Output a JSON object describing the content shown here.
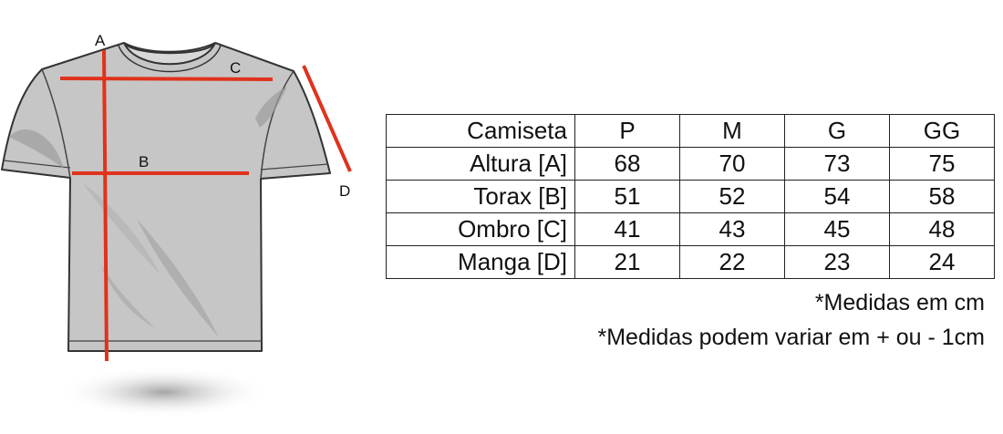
{
  "figure": {
    "labels": {
      "a": "A",
      "b": "B",
      "c": "C",
      "d": "D"
    },
    "colors": {
      "shirt": "#c6c6c6",
      "outline": "#333333",
      "measure": "#e0321c"
    }
  },
  "table": {
    "header": [
      "Camiseta",
      "P",
      "M",
      "G",
      "GG"
    ],
    "rows": [
      {
        "label": "Altura [A]",
        "values": [
          "68",
          "70",
          "73",
          "75"
        ]
      },
      {
        "label": "Torax [B]",
        "values": [
          "51",
          "52",
          "54",
          "58"
        ]
      },
      {
        "label": "Ombro [C]",
        "values": [
          "41",
          "43",
          "45",
          "48"
        ]
      },
      {
        "label": "Manga [D]",
        "values": [
          "21",
          "22",
          "23",
          "24"
        ]
      }
    ]
  },
  "notes": {
    "unit_note": "*Medidas em cm",
    "variance_note": "*Medidas podem variar em + ou - 1cm"
  }
}
